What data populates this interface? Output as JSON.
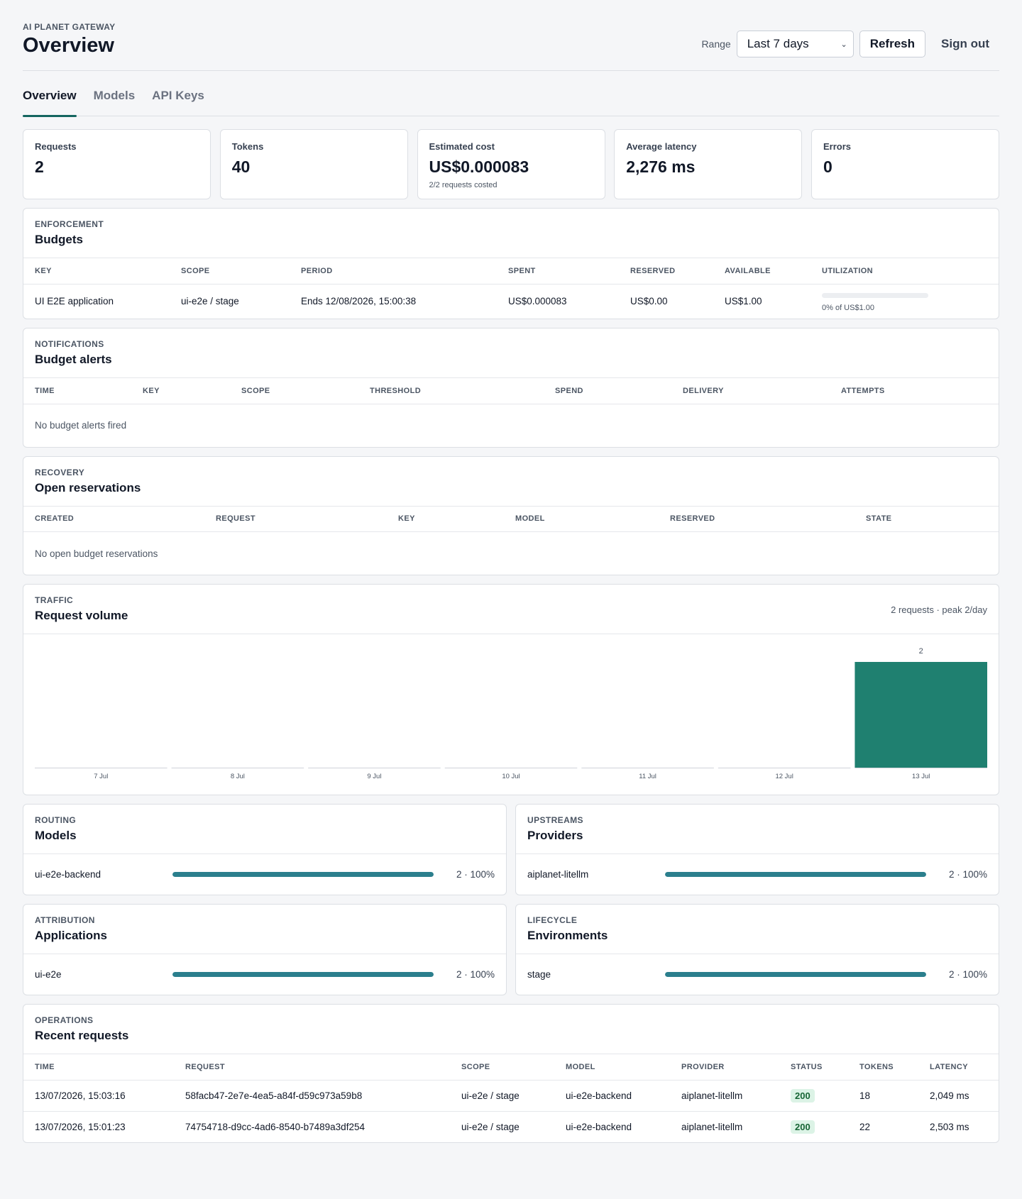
{
  "app": {
    "eyebrow": "AI PLANET GATEWAY",
    "title": "Overview"
  },
  "controls": {
    "range_label": "Range",
    "range_value": "Last 7 days",
    "refresh_label": "Refresh",
    "signout_label": "Sign out"
  },
  "tabs": [
    {
      "label": "Overview",
      "active": true
    },
    {
      "label": "Models",
      "active": false
    },
    {
      "label": "API Keys",
      "active": false
    }
  ],
  "stats": [
    {
      "label": "Requests",
      "value": "2",
      "sub": ""
    },
    {
      "label": "Tokens",
      "value": "40",
      "sub": ""
    },
    {
      "label": "Estimated cost",
      "value": "US$0.000083",
      "sub": "2/2 requests costed"
    },
    {
      "label": "Average latency",
      "value": "2,276 ms",
      "sub": ""
    },
    {
      "label": "Errors",
      "value": "0",
      "sub": ""
    }
  ],
  "budgets": {
    "eyebrow": "ENFORCEMENT",
    "title": "Budgets",
    "columns": [
      "KEY",
      "SCOPE",
      "PERIOD",
      "SPENT",
      "RESERVED",
      "AVAILABLE",
      "UTILIZATION"
    ],
    "rows": [
      {
        "key": "UI E2E application",
        "scope": "ui-e2e / stage",
        "period": "Ends 12/08/2026, 15:00:38",
        "spent": "US$0.000083",
        "reserved": "US$0.00",
        "available": "US$1.00",
        "utilization_fraction": 0.0,
        "utilization_text": "0% of US$1.00"
      }
    ]
  },
  "alerts": {
    "eyebrow": "NOTIFICATIONS",
    "title": "Budget alerts",
    "columns": [
      "TIME",
      "KEY",
      "SCOPE",
      "THRESHOLD",
      "SPEND",
      "DELIVERY",
      "ATTEMPTS"
    ],
    "empty": "No budget alerts fired"
  },
  "reservations": {
    "eyebrow": "RECOVERY",
    "title": "Open reservations",
    "columns": [
      "CREATED",
      "REQUEST",
      "KEY",
      "MODEL",
      "RESERVED",
      "STATE"
    ],
    "empty": "No open budget reservations"
  },
  "traffic": {
    "eyebrow": "TRAFFIC",
    "title": "Request volume",
    "meta": "2 requests · peak 2/day"
  },
  "chart_data": {
    "type": "bar",
    "categories": [
      "7 Jul",
      "8 Jul",
      "9 Jul",
      "10 Jul",
      "11 Jul",
      "12 Jul",
      "13 Jul"
    ],
    "values": [
      0,
      0,
      0,
      0,
      0,
      0,
      2
    ],
    "data_labels": [
      "",
      "",
      "",
      "",
      "",
      "",
      "2"
    ],
    "ylim": [
      0,
      2
    ],
    "grid": false,
    "color": "#1f8070"
  },
  "models": {
    "eyebrow": "ROUTING",
    "title": "Models",
    "rows": [
      {
        "name": "ui-e2e-backend",
        "fraction": 1.0,
        "value": "2 · 100%"
      }
    ]
  },
  "providers": {
    "eyebrow": "UPSTREAMS",
    "title": "Providers",
    "rows": [
      {
        "name": "aiplanet-litellm",
        "fraction": 1.0,
        "value": "2 · 100%"
      }
    ]
  },
  "applications": {
    "eyebrow": "ATTRIBUTION",
    "title": "Applications",
    "rows": [
      {
        "name": "ui-e2e",
        "fraction": 1.0,
        "value": "2 · 100%"
      }
    ]
  },
  "environments": {
    "eyebrow": "LIFECYCLE",
    "title": "Environments",
    "rows": [
      {
        "name": "stage",
        "fraction": 1.0,
        "value": "2 · 100%"
      }
    ]
  },
  "recent": {
    "eyebrow": "OPERATIONS",
    "title": "Recent requests",
    "columns": [
      "TIME",
      "REQUEST",
      "SCOPE",
      "MODEL",
      "PROVIDER",
      "STATUS",
      "TOKENS",
      "LATENCY"
    ],
    "rows": [
      {
        "time": "13/07/2026, 15:03:16",
        "request": "58facb47-2e7e-4ea5-a84f-d59c973a59b8",
        "scope": "ui-e2e / stage",
        "model": "ui-e2e-backend",
        "provider": "aiplanet-litellm",
        "status": "200",
        "tokens": "18",
        "latency": "2,049 ms"
      },
      {
        "time": "13/07/2026, 15:01:23",
        "request": "74754718-d9cc-4ad6-8540-b7489a3df254",
        "scope": "ui-e2e / stage",
        "model": "ui-e2e-backend",
        "provider": "aiplanet-litellm",
        "status": "200",
        "tokens": "22",
        "latency": "2,503 ms"
      }
    ]
  },
  "colors": {
    "accent": "#14655f",
    "bar": "#1f8070",
    "distribution": "#2b7f8d",
    "status_ok_bg": "#dcf3e6",
    "status_ok_text": "#166534"
  }
}
